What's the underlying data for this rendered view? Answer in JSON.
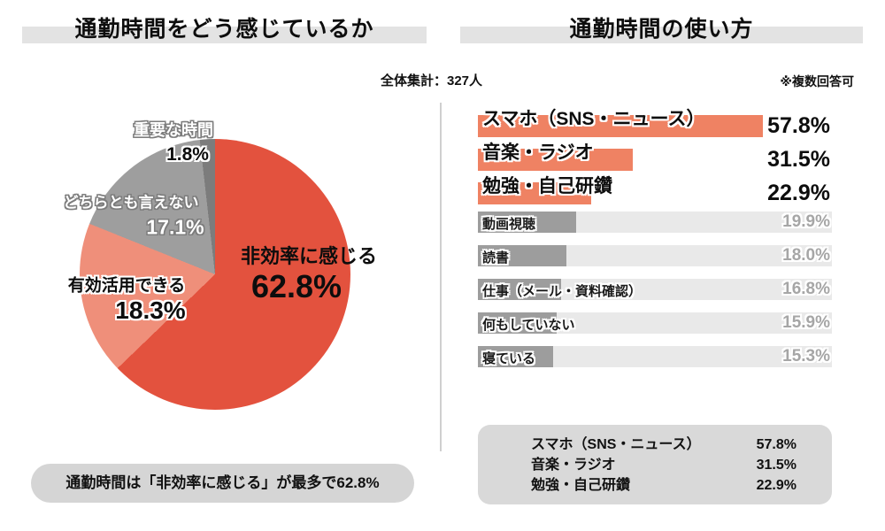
{
  "left_panel": {
    "title": "通勤時間をどう感じているか",
    "callout": "通勤時間は「非効率に感じる」が最多で62.8%"
  },
  "right_panel": {
    "title": "通勤時間の使い方",
    "total_note": "全体集計：327人",
    "multi_note": "※複数回答可",
    "summary": [
      {
        "label": "スマホ（SNS・ニュース）",
        "value": "57.8%"
      },
      {
        "label": "音楽・ラジオ",
        "value": "31.5%"
      },
      {
        "label": "勉強・自己研鑽",
        "value": "22.9%"
      }
    ]
  },
  "colors": {
    "pie_main_red": "#e3523e",
    "pie_salmon": "#ef8f7a",
    "pie_gray": "#9e9e9e",
    "pie_dark_gray": "#7c7c7c",
    "bar_highlight": "#ef8263",
    "bar_default": "#9d9d9d",
    "bar_track": "#e9e9e9",
    "title_band": "#e3e3e3",
    "callout_bg": "#d5d5d5",
    "summary_bg": "#d9d9d9"
  },
  "chart_data": [
    {
      "type": "pie",
      "title": "通勤時間をどう感じているか",
      "start_angle_deg": 0,
      "direction": "clockwise",
      "slices": [
        {
          "label": "非効率に感じる",
          "value": 62.8,
          "display": "62.8%",
          "color": "#e3523e"
        },
        {
          "label": "有効活用できる",
          "value": 18.3,
          "display": "18.3%",
          "color": "#ef8f7a"
        },
        {
          "label": "どちらとも言えない",
          "value": 17.1,
          "display": "17.1%",
          "color": "#9e9e9e"
        },
        {
          "label": "重要な時間",
          "value": 1.8,
          "display": "1.8%",
          "color": "#7c7c7c"
        }
      ],
      "annotation": "通勤時間は「非効率に感じる」が最多で62.8%"
    },
    {
      "type": "bar",
      "orientation": "horizontal",
      "title": "通勤時間の使い方",
      "sample_note": "全体集計：327人",
      "multi_answer_note": "※複数回答可",
      "categories": [
        "スマホ（SNS・ニュース）",
        "音楽・ラジオ",
        "勉強・自己研鑽",
        "動画視聴",
        "読書",
        "仕事（メール・資料確認）",
        "何もしていない",
        "寝ている"
      ],
      "values": [
        57.8,
        31.5,
        22.9,
        19.9,
        18.0,
        16.8,
        15.9,
        15.3
      ],
      "displays": [
        "57.8%",
        "31.5%",
        "22.9%",
        "19.9%",
        "18.0%",
        "16.8%",
        "15.9%",
        "15.3%"
      ],
      "highlighted_count": 3,
      "xlim": [
        0,
        71.8
      ],
      "grid": false,
      "legend": false
    }
  ]
}
